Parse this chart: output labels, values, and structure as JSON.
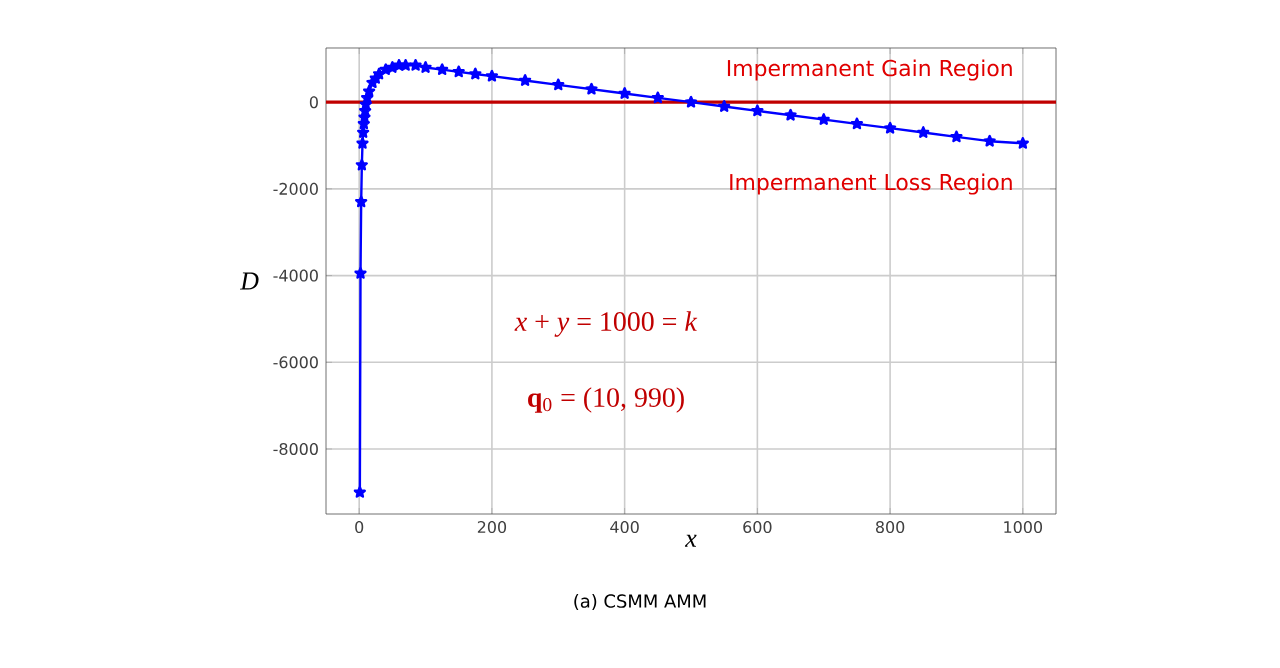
{
  "chart_data": {
    "type": "line",
    "xlabel": "x",
    "ylabel": "D",
    "x": [
      1,
      2,
      3,
      4,
      5,
      6,
      7,
      8,
      9,
      10,
      12,
      15,
      20,
      25,
      30,
      40,
      50,
      60,
      70,
      85,
      100,
      125,
      150,
      175,
      200,
      250,
      300,
      350,
      400,
      450,
      500,
      550,
      600,
      650,
      700,
      750,
      800,
      850,
      900,
      950,
      1000
    ],
    "series": [
      {
        "color": "#0000ff",
        "values": [
          -9000,
          -3950,
          -2300,
          -1450,
          -950,
          -700,
          -500,
          -350,
          -200,
          -50,
          100,
          250,
          450,
          550,
          650,
          750,
          800,
          850,
          850,
          850,
          800,
          750,
          700,
          650,
          600,
          500,
          400,
          300,
          200,
          100,
          0,
          -100,
          -200,
          -300,
          -400,
          -500,
          -600,
          -700,
          -800,
          -900,
          -950
        ]
      }
    ],
    "xlim": [
      -50,
      1050
    ],
    "ylim": [
      -9500,
      1250
    ],
    "xticks": [
      0,
      200,
      400,
      600,
      800,
      1000
    ],
    "yticks": [
      -8000,
      -6000,
      -4000,
      -2000,
      0
    ],
    "grid": true,
    "marker": "star",
    "line_style": "solid",
    "ref_lines": [
      {
        "axis": "y",
        "value": 0,
        "color": "#c00000"
      }
    ],
    "annotations": [
      "Impermanent Gain Region",
      "Impermanent Loss Region",
      "*x* + *y* = 1000 = *k*",
      "**q**$_{0}$ = (10, 990)",
      "(a) CSMM AMM"
    ]
  }
}
